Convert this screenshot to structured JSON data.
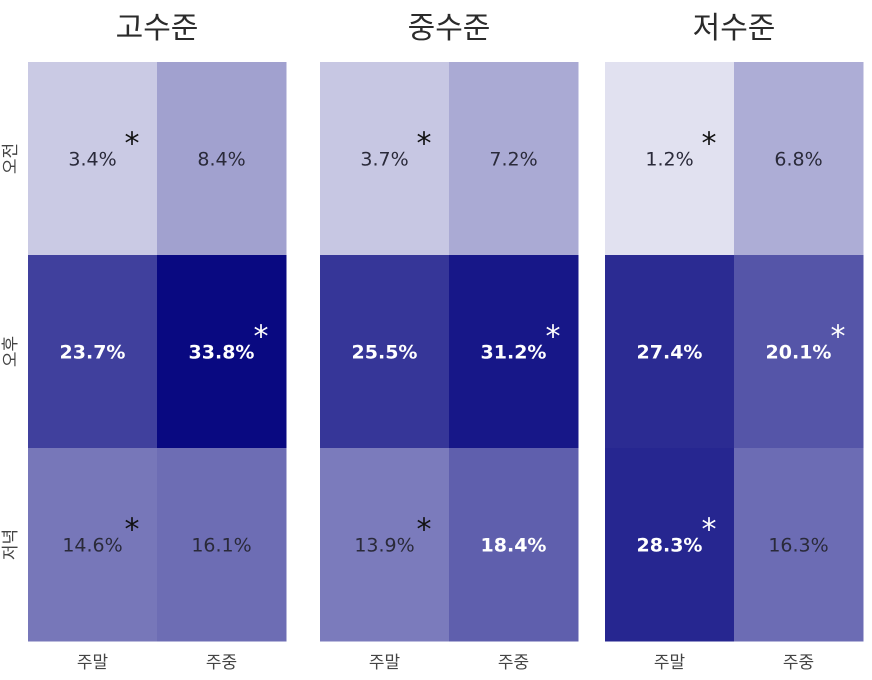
{
  "chart_data": [
    {
      "type": "heatmap",
      "title": "고수준",
      "x_categories": [
        "주말",
        "주중"
      ],
      "y_categories": [
        "오전",
        "오후",
        "저녁"
      ],
      "values": [
        [
          3.4,
          8.4
        ],
        [
          23.7,
          33.8
        ],
        [
          14.6,
          16.1
        ]
      ],
      "labels": [
        [
          "3.4%",
          "8.4%"
        ],
        [
          "23.7%",
          "33.8%"
        ],
        [
          "14.6%",
          "16.1%"
        ]
      ],
      "significant": [
        [
          true,
          false
        ],
        [
          false,
          true
        ],
        [
          true,
          false
        ]
      ]
    },
    {
      "type": "heatmap",
      "title": "중수준",
      "x_categories": [
        "주말",
        "주중"
      ],
      "y_categories": [
        "오전",
        "오후",
        "저녁"
      ],
      "values": [
        [
          3.7,
          7.2
        ],
        [
          25.5,
          31.2
        ],
        [
          13.9,
          18.4
        ]
      ],
      "labels": [
        [
          "3.7%",
          "7.2%"
        ],
        [
          "25.5%",
          "31.2%"
        ],
        [
          "13.9%",
          "18.4%"
        ]
      ],
      "significant": [
        [
          true,
          false
        ],
        [
          false,
          true
        ],
        [
          true,
          false
        ]
      ]
    },
    {
      "type": "heatmap",
      "title": "저수준",
      "x_categories": [
        "주말",
        "주중"
      ],
      "y_categories": [
        "오전",
        "오후",
        "저녁"
      ],
      "values": [
        [
          1.2,
          6.8
        ],
        [
          27.4,
          20.1
        ],
        [
          28.3,
          16.3
        ]
      ],
      "labels": [
        [
          "1.2%",
          "6.8%"
        ],
        [
          "27.4%",
          "20.1%"
        ],
        [
          "28.3%",
          "16.3%"
        ]
      ],
      "significant": [
        [
          true,
          false
        ],
        [
          false,
          true
        ],
        [
          true,
          false
        ]
      ]
    }
  ],
  "marker_symbol": "*",
  "colors": {
    "low": "#f4f4fa",
    "high": "#080880",
    "dark_text": "#2a2a3a",
    "light_text": "#ffffff"
  }
}
